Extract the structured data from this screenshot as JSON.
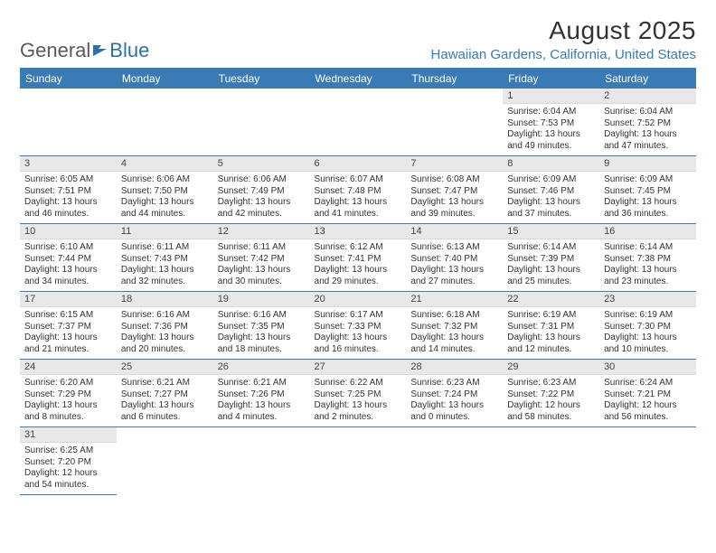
{
  "logo": {
    "text_gray": "General",
    "text_blue": "Blue"
  },
  "title": "August 2025",
  "location": "Hawaiian Gardens, California, United States",
  "colors": {
    "header_bg": "#3a7ab5",
    "header_text": "#ffffff",
    "daynum_bg": "#e8e8e8",
    "border": "#3a7ab5",
    "location_color": "#3a7ab5",
    "logo_gray": "#5a5a5a"
  },
  "day_headers": [
    "Sunday",
    "Monday",
    "Tuesday",
    "Wednesday",
    "Thursday",
    "Friday",
    "Saturday"
  ],
  "weeks": [
    [
      null,
      null,
      null,
      null,
      null,
      {
        "n": "1",
        "sr": "Sunrise: 6:04 AM",
        "ss": "Sunset: 7:53 PM",
        "dl": "Daylight: 13 hours and 49 minutes."
      },
      {
        "n": "2",
        "sr": "Sunrise: 6:04 AM",
        "ss": "Sunset: 7:52 PM",
        "dl": "Daylight: 13 hours and 47 minutes."
      }
    ],
    [
      {
        "n": "3",
        "sr": "Sunrise: 6:05 AM",
        "ss": "Sunset: 7:51 PM",
        "dl": "Daylight: 13 hours and 46 minutes."
      },
      {
        "n": "4",
        "sr": "Sunrise: 6:06 AM",
        "ss": "Sunset: 7:50 PM",
        "dl": "Daylight: 13 hours and 44 minutes."
      },
      {
        "n": "5",
        "sr": "Sunrise: 6:06 AM",
        "ss": "Sunset: 7:49 PM",
        "dl": "Daylight: 13 hours and 42 minutes."
      },
      {
        "n": "6",
        "sr": "Sunrise: 6:07 AM",
        "ss": "Sunset: 7:48 PM",
        "dl": "Daylight: 13 hours and 41 minutes."
      },
      {
        "n": "7",
        "sr": "Sunrise: 6:08 AM",
        "ss": "Sunset: 7:47 PM",
        "dl": "Daylight: 13 hours and 39 minutes."
      },
      {
        "n": "8",
        "sr": "Sunrise: 6:09 AM",
        "ss": "Sunset: 7:46 PM",
        "dl": "Daylight: 13 hours and 37 minutes."
      },
      {
        "n": "9",
        "sr": "Sunrise: 6:09 AM",
        "ss": "Sunset: 7:45 PM",
        "dl": "Daylight: 13 hours and 36 minutes."
      }
    ],
    [
      {
        "n": "10",
        "sr": "Sunrise: 6:10 AM",
        "ss": "Sunset: 7:44 PM",
        "dl": "Daylight: 13 hours and 34 minutes."
      },
      {
        "n": "11",
        "sr": "Sunrise: 6:11 AM",
        "ss": "Sunset: 7:43 PM",
        "dl": "Daylight: 13 hours and 32 minutes."
      },
      {
        "n": "12",
        "sr": "Sunrise: 6:11 AM",
        "ss": "Sunset: 7:42 PM",
        "dl": "Daylight: 13 hours and 30 minutes."
      },
      {
        "n": "13",
        "sr": "Sunrise: 6:12 AM",
        "ss": "Sunset: 7:41 PM",
        "dl": "Daylight: 13 hours and 29 minutes."
      },
      {
        "n": "14",
        "sr": "Sunrise: 6:13 AM",
        "ss": "Sunset: 7:40 PM",
        "dl": "Daylight: 13 hours and 27 minutes."
      },
      {
        "n": "15",
        "sr": "Sunrise: 6:14 AM",
        "ss": "Sunset: 7:39 PM",
        "dl": "Daylight: 13 hours and 25 minutes."
      },
      {
        "n": "16",
        "sr": "Sunrise: 6:14 AM",
        "ss": "Sunset: 7:38 PM",
        "dl": "Daylight: 13 hours and 23 minutes."
      }
    ],
    [
      {
        "n": "17",
        "sr": "Sunrise: 6:15 AM",
        "ss": "Sunset: 7:37 PM",
        "dl": "Daylight: 13 hours and 21 minutes."
      },
      {
        "n": "18",
        "sr": "Sunrise: 6:16 AM",
        "ss": "Sunset: 7:36 PM",
        "dl": "Daylight: 13 hours and 20 minutes."
      },
      {
        "n": "19",
        "sr": "Sunrise: 6:16 AM",
        "ss": "Sunset: 7:35 PM",
        "dl": "Daylight: 13 hours and 18 minutes."
      },
      {
        "n": "20",
        "sr": "Sunrise: 6:17 AM",
        "ss": "Sunset: 7:33 PM",
        "dl": "Daylight: 13 hours and 16 minutes."
      },
      {
        "n": "21",
        "sr": "Sunrise: 6:18 AM",
        "ss": "Sunset: 7:32 PM",
        "dl": "Daylight: 13 hours and 14 minutes."
      },
      {
        "n": "22",
        "sr": "Sunrise: 6:19 AM",
        "ss": "Sunset: 7:31 PM",
        "dl": "Daylight: 13 hours and 12 minutes."
      },
      {
        "n": "23",
        "sr": "Sunrise: 6:19 AM",
        "ss": "Sunset: 7:30 PM",
        "dl": "Daylight: 13 hours and 10 minutes."
      }
    ],
    [
      {
        "n": "24",
        "sr": "Sunrise: 6:20 AM",
        "ss": "Sunset: 7:29 PM",
        "dl": "Daylight: 13 hours and 8 minutes."
      },
      {
        "n": "25",
        "sr": "Sunrise: 6:21 AM",
        "ss": "Sunset: 7:27 PM",
        "dl": "Daylight: 13 hours and 6 minutes."
      },
      {
        "n": "26",
        "sr": "Sunrise: 6:21 AM",
        "ss": "Sunset: 7:26 PM",
        "dl": "Daylight: 13 hours and 4 minutes."
      },
      {
        "n": "27",
        "sr": "Sunrise: 6:22 AM",
        "ss": "Sunset: 7:25 PM",
        "dl": "Daylight: 13 hours and 2 minutes."
      },
      {
        "n": "28",
        "sr": "Sunrise: 6:23 AM",
        "ss": "Sunset: 7:24 PM",
        "dl": "Daylight: 13 hours and 0 minutes."
      },
      {
        "n": "29",
        "sr": "Sunrise: 6:23 AM",
        "ss": "Sunset: 7:22 PM",
        "dl": "Daylight: 12 hours and 58 minutes."
      },
      {
        "n": "30",
        "sr": "Sunrise: 6:24 AM",
        "ss": "Sunset: 7:21 PM",
        "dl": "Daylight: 12 hours and 56 minutes."
      }
    ],
    [
      {
        "n": "31",
        "sr": "Sunrise: 6:25 AM",
        "ss": "Sunset: 7:20 PM",
        "dl": "Daylight: 12 hours and 54 minutes."
      },
      null,
      null,
      null,
      null,
      null,
      null
    ]
  ]
}
